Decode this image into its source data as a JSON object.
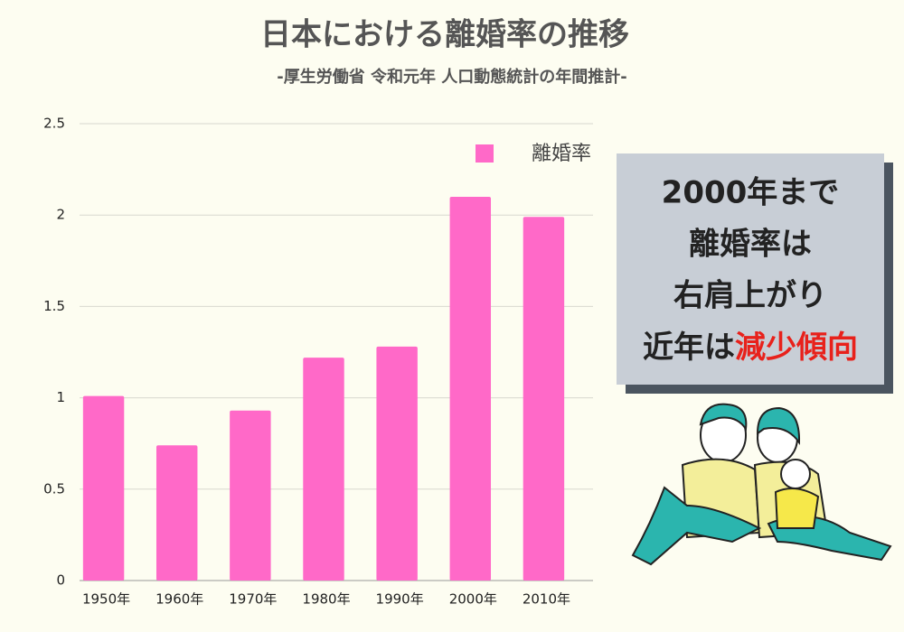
{
  "chart_data": {
    "type": "bar",
    "title": "日本における離婚率の推移",
    "subtitle": "-厚生労働省 令和元年 人口動態統計の年間推計-",
    "categories": [
      "1950年",
      "1960年",
      "1970年",
      "1980年",
      "1990年",
      "2000年",
      "2010年"
    ],
    "series": [
      {
        "name": "離婚率",
        "color": "#ff69c8",
        "values": [
          1.01,
          0.74,
          0.93,
          1.22,
          1.28,
          2.1,
          1.99
        ]
      }
    ],
    "ylim": [
      0,
      2.5
    ],
    "yticks": [
      0,
      0.5,
      1,
      1.5,
      2,
      2.5
    ],
    "grid": true,
    "legend": "top-right",
    "annotation": {
      "lines": [
        "2000年まで",
        "離婚率は",
        "右肩上がり"
      ],
      "last_line": "近年は",
      "highlight": "減少傾向",
      "highlight_color": "#e8211b"
    }
  }
}
